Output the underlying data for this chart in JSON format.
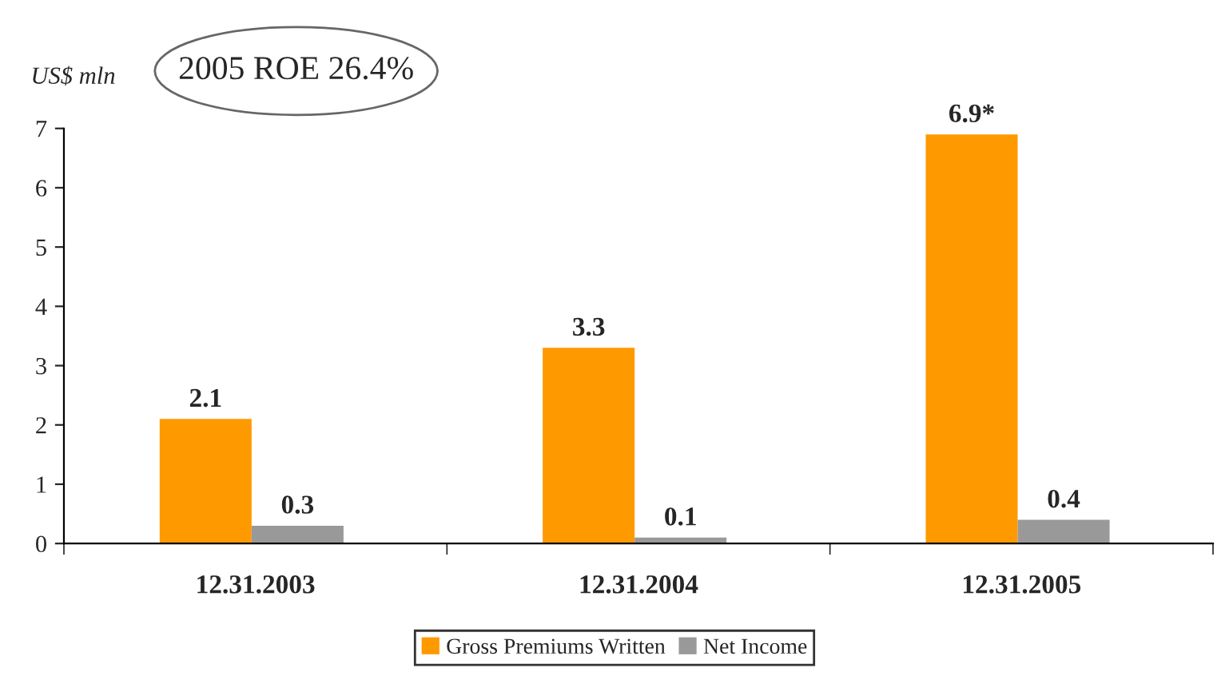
{
  "chart_data": {
    "type": "bar",
    "ylabel": "US$ mln",
    "annotations": [
      "2005 ROE 26.4%"
    ],
    "categories": [
      "12.31.2003",
      "12.31.2004",
      "12.31.2005"
    ],
    "series": [
      {
        "name": "Gross Premiums Written",
        "color": "#ff9900",
        "values": [
          2.1,
          3.3,
          6.9
        ],
        "value_labels": [
          "2.1",
          "3.3",
          "6.9*"
        ]
      },
      {
        "name": "Net Income",
        "color": "#999999",
        "values": [
          0.3,
          0.1,
          0.4
        ],
        "value_labels": [
          "0.3",
          "0.1",
          "0.4"
        ]
      }
    ],
    "ylim": [
      0,
      7
    ],
    "yticks": [
      0,
      1,
      2,
      3,
      4,
      5,
      6,
      7
    ],
    "grid": false,
    "legend": "bottom"
  }
}
